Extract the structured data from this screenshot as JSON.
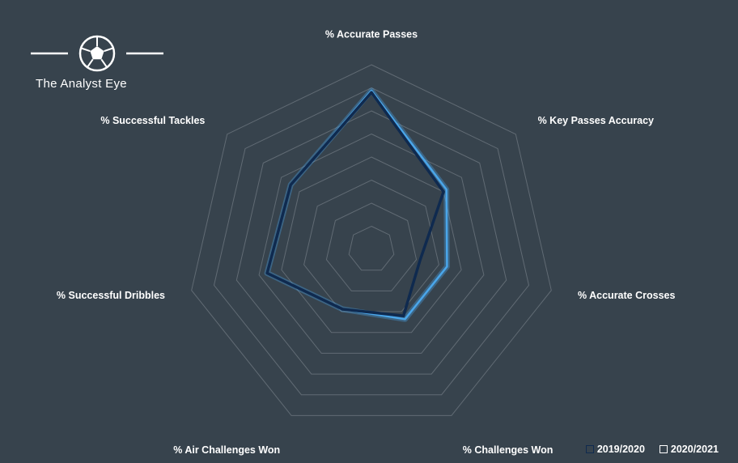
{
  "logo": {
    "text": "The Analyst Eye",
    "icon": "soccer-ball-icon"
  },
  "chart_data": {
    "type": "radar",
    "categories": [
      "% Accurate Passes",
      "% Key Passes Accuracy",
      "% Accurate Crosses",
      "% Challenges Won",
      "% Air Challenges Won",
      "% Successful Dribbles",
      "% Successful Tackles"
    ],
    "series": [
      {
        "name": "2019/2020",
        "color": "#0f2a4f",
        "values": [
          0.85,
          0.5,
          0.27,
          0.4,
          0.36,
          0.58,
          0.56
        ]
      },
      {
        "name": "2020/2021",
        "color": "#4aa6ea",
        "values": [
          0.86,
          0.52,
          0.42,
          0.42,
          0.36,
          0.58,
          0.56
        ]
      }
    ],
    "range": [
      0,
      1
    ],
    "grid_levels": 8,
    "grid": true,
    "legend_position": "bottom-right",
    "grid_color": "#616b74",
    "background": "#37434d"
  }
}
